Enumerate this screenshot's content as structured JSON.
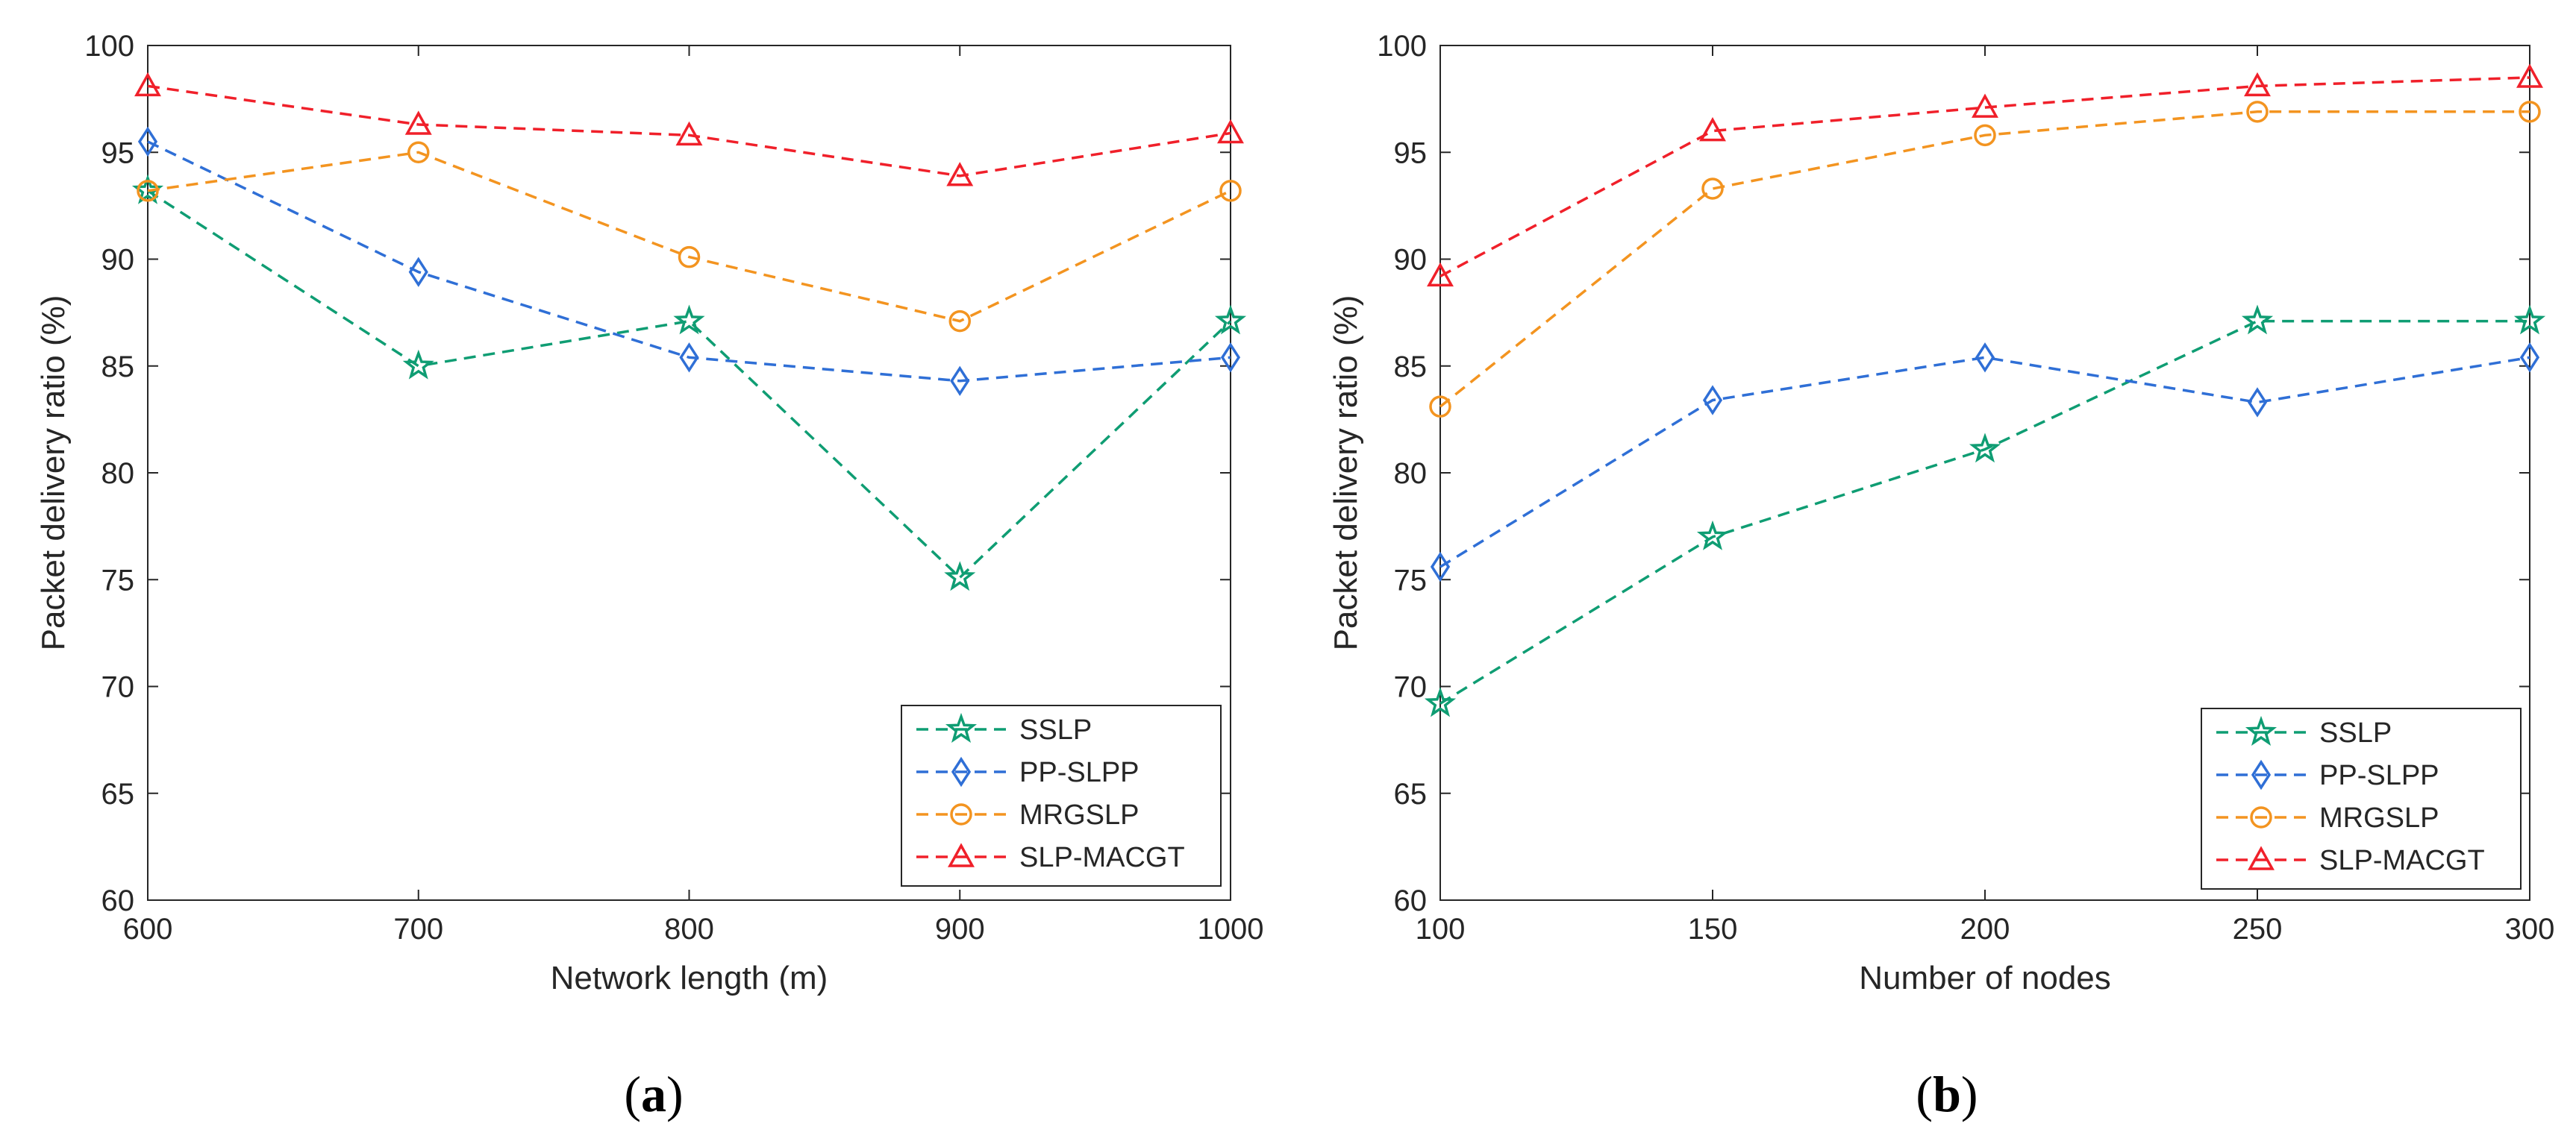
{
  "chart_data": [
    {
      "type": "line",
      "caption": "a",
      "xlabel": "Network length (m)",
      "ylabel": "Packet delivery ratio (%)",
      "xlim": [
        600,
        1000
      ],
      "ylim": [
        60,
        100
      ],
      "xticks": [
        600,
        700,
        800,
        900,
        1000
      ],
      "yticks": [
        60,
        65,
        70,
        75,
        80,
        85,
        90,
        95,
        100
      ],
      "x": [
        600,
        700,
        800,
        900,
        1000
      ],
      "legend_position": "bottom-right",
      "series": [
        {
          "name": "SSLP",
          "values": [
            93.2,
            85.0,
            87.1,
            75.1,
            87.1
          ]
        },
        {
          "name": "PP-SLPP",
          "values": [
            95.5,
            89.4,
            85.4,
            84.3,
            85.4
          ]
        },
        {
          "name": "MRGSLP",
          "values": [
            93.2,
            95.0,
            90.1,
            87.1,
            93.2
          ]
        },
        {
          "name": "SLP-MACGT",
          "values": [
            98.1,
            96.3,
            95.8,
            93.9,
            95.9
          ]
        }
      ]
    },
    {
      "type": "line",
      "caption": "b",
      "xlabel": "Number of nodes",
      "ylabel": "Packet delivery ratio (%)",
      "xlim": [
        100,
        300
      ],
      "ylim": [
        60,
        100
      ],
      "xticks": [
        100,
        150,
        200,
        250,
        300
      ],
      "yticks": [
        60,
        65,
        70,
        75,
        80,
        85,
        90,
        95,
        100
      ],
      "x": [
        100,
        150,
        200,
        250,
        300
      ],
      "legend_position": "bottom-right",
      "series": [
        {
          "name": "SSLP",
          "values": [
            69.2,
            77.0,
            81.1,
            87.1,
            87.1
          ]
        },
        {
          "name": "PP-SLPP",
          "values": [
            75.6,
            83.4,
            85.4,
            83.3,
            85.4
          ]
        },
        {
          "name": "MRGSLP",
          "values": [
            83.1,
            93.3,
            95.8,
            96.9,
            96.9
          ]
        },
        {
          "name": "SLP-MACGT",
          "values": [
            89.2,
            96.0,
            97.1,
            98.1,
            98.5
          ]
        }
      ]
    }
  ],
  "styles": {
    "SSLP": {
      "color": "#0f9d73",
      "marker": "star"
    },
    "PP-SLPP": {
      "color": "#2f6fd6",
      "marker": "diamond"
    },
    "MRGSLP": {
      "color": "#f39420",
      "marker": "circle"
    },
    "SLP-MACGT": {
      "color": "#f0202a",
      "marker": "triangle"
    }
  }
}
